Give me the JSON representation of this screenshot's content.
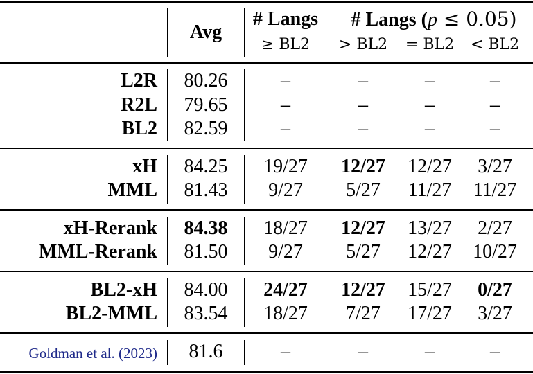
{
  "header": {
    "avg": "Avg",
    "langs_ge_title": "# Langs",
    "langs_ge_sub": "≥ BL2",
    "langs_sig_title_prefix": "# Langs (",
    "langs_sig_p": "p",
    "langs_sig_cond": " ≤ 0.05)",
    "sub_gt": "> BL2",
    "sub_eq": "= BL2",
    "sub_lt": "< BL2"
  },
  "rows": [
    {
      "name": "L2R",
      "avg": "80.26",
      "ge": "–",
      "gt": "–",
      "eq": "–",
      "lt": "–"
    },
    {
      "name": "R2L",
      "avg": "79.65",
      "ge": "–",
      "gt": "–",
      "eq": "–",
      "lt": "–"
    },
    {
      "name": "BL2",
      "avg": "82.59",
      "ge": "–",
      "gt": "–",
      "eq": "–",
      "lt": "–"
    },
    {
      "name": "xH",
      "avg": "84.25",
      "ge": "19/27",
      "gt": "12/27",
      "eq": "12/27",
      "lt": "3/27"
    },
    {
      "name": "MML",
      "avg": "81.43",
      "ge": "9/27",
      "gt": "5/27",
      "eq": "11/27",
      "lt": "11/27"
    },
    {
      "name": "xH-Rerank",
      "avg": "84.38",
      "ge": "18/27",
      "gt": "12/27",
      "eq": "13/27",
      "lt": "2/27"
    },
    {
      "name": "MML-Rerank",
      "avg": "81.50",
      "ge": "9/27",
      "gt": "5/27",
      "eq": "12/27",
      "lt": "10/27"
    },
    {
      "name": "BL2-xH",
      "avg": "84.00",
      "ge": "24/27",
      "gt": "12/27",
      "eq": "15/27",
      "lt": "0/27"
    },
    {
      "name": "BL2-MML",
      "avg": "83.54",
      "ge": "18/27",
      "gt": "7/27",
      "eq": "17/27",
      "lt": "3/27"
    }
  ],
  "citation": {
    "authors": "Goldman et al. (",
    "year": "2023",
    "close": ")",
    "avg": "81.6",
    "ge": "–",
    "gt": "–",
    "eq": "–",
    "lt": "–"
  }
}
